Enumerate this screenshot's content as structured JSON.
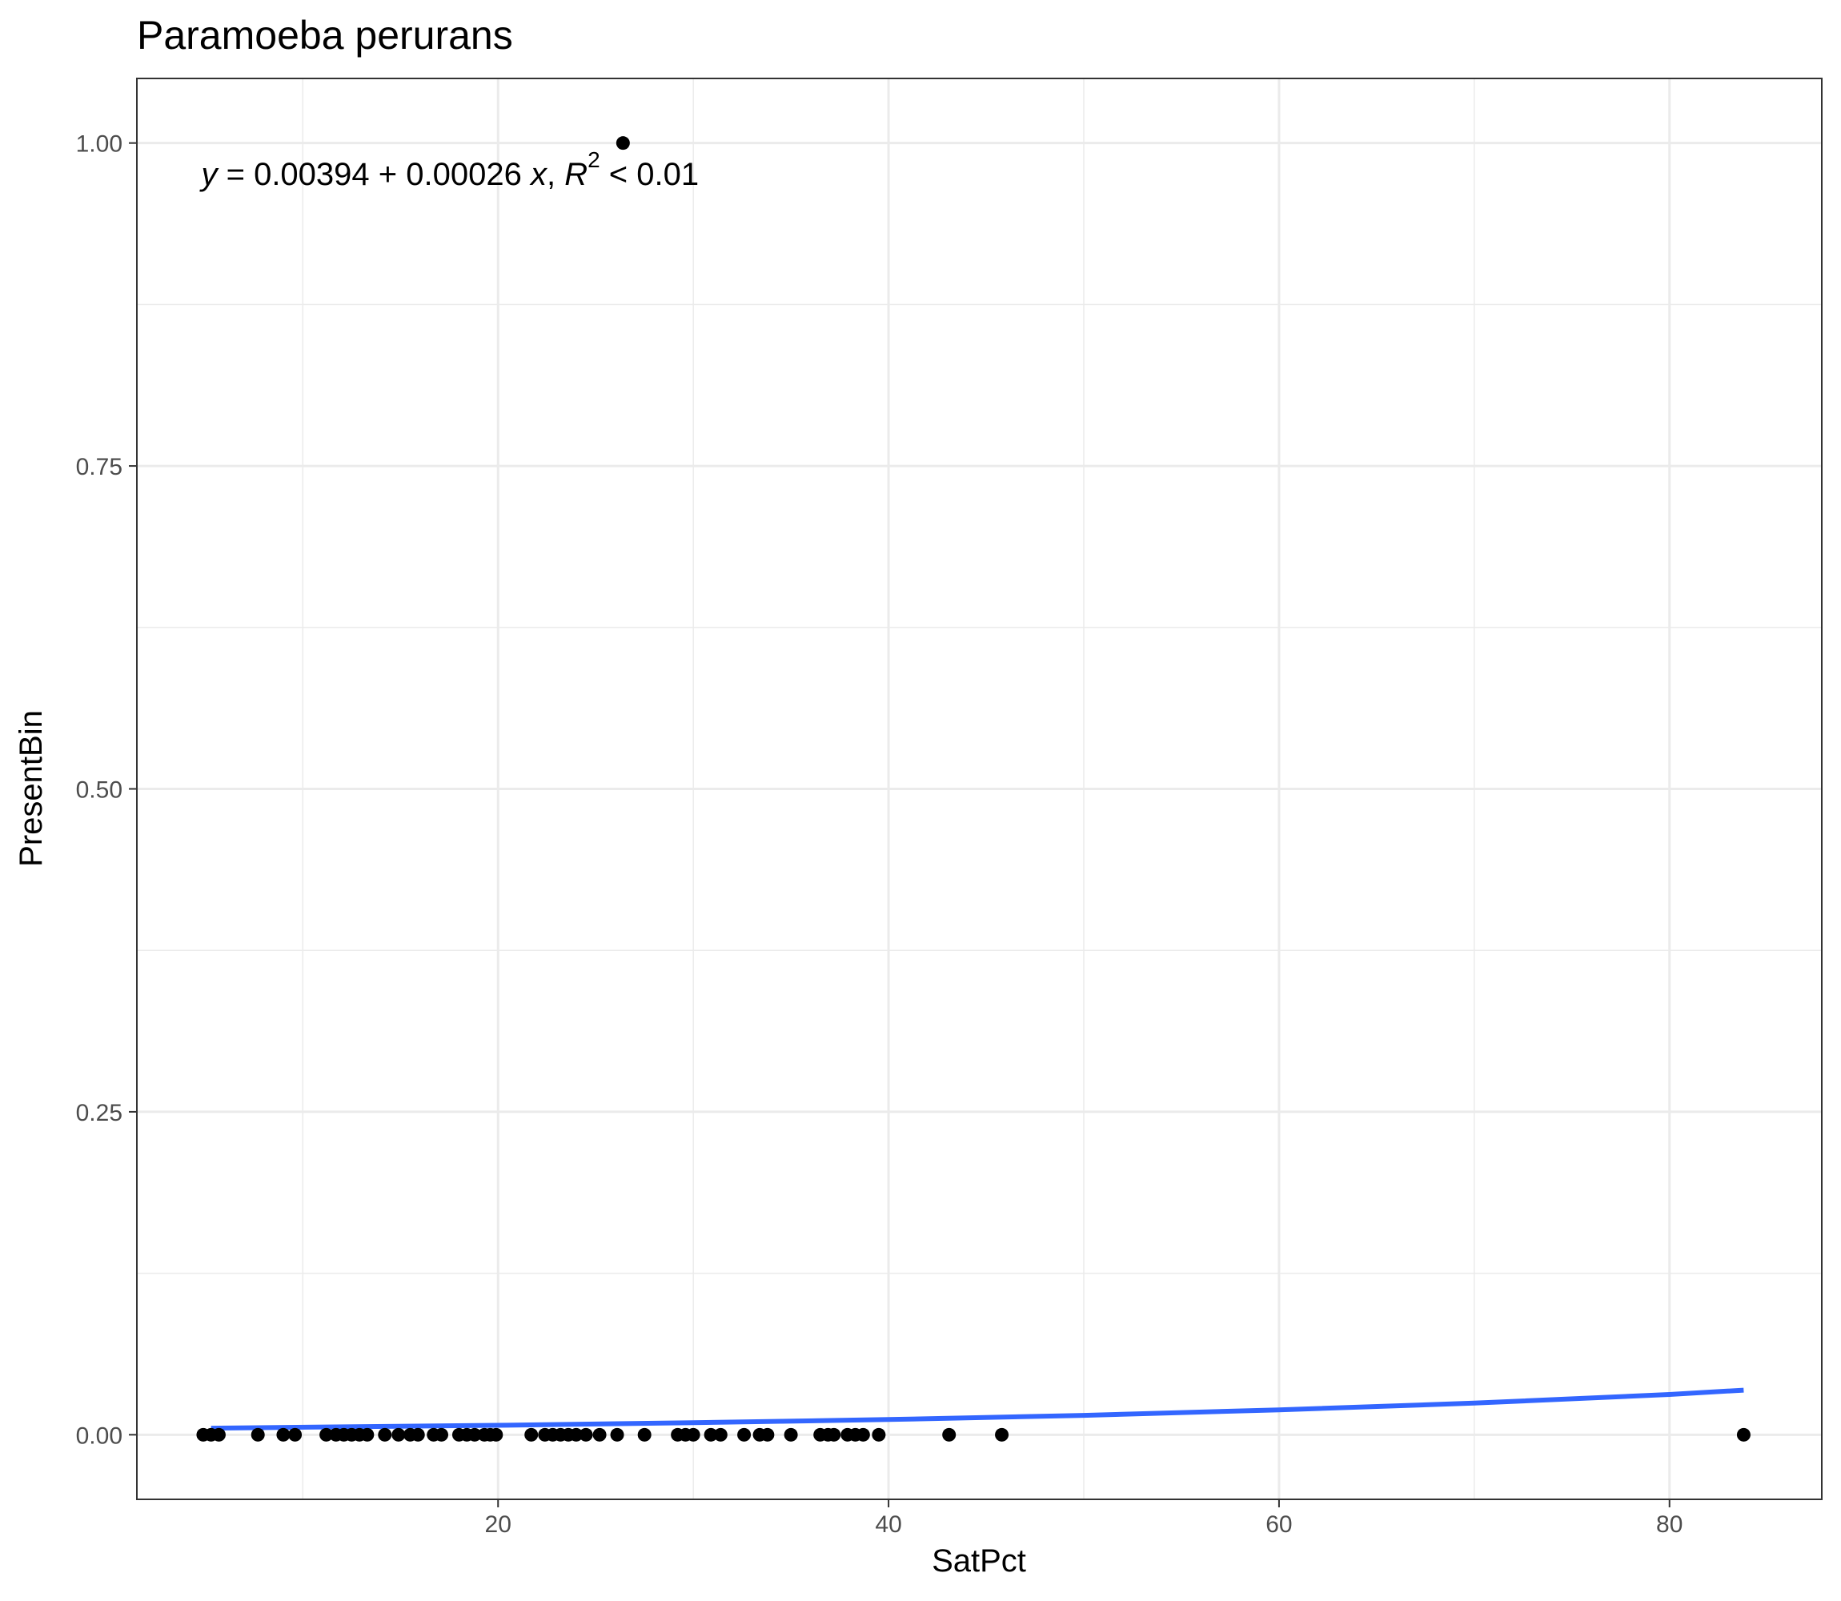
{
  "chart_data": {
    "type": "scatter",
    "title": "Paramoeba perurans",
    "xlabel": "SatPct",
    "ylabel": "PresentBin",
    "xlim": [
      1.5,
      87.8
    ],
    "ylim": [
      -0.05,
      1.05
    ],
    "x_ticks": [
      20,
      40,
      60,
      80
    ],
    "x_tick_labels": [
      "20",
      "40",
      "60",
      "80"
    ],
    "x_minor": [
      10,
      30,
      50,
      70
    ],
    "y_ticks": [
      0,
      0.25,
      0.5,
      0.75,
      1.0
    ],
    "y_tick_labels": [
      "0.00",
      "0.25",
      "0.50",
      "0.75",
      "1.00"
    ],
    "y_minor": [
      0.125,
      0.375,
      0.625,
      0.875
    ],
    "grid": true,
    "points": [
      {
        "x": 4.9,
        "y": 0
      },
      {
        "x": 5.3,
        "y": 0
      },
      {
        "x": 5.7,
        "y": 0
      },
      {
        "x": 7.7,
        "y": 0
      },
      {
        "x": 9.0,
        "y": 0
      },
      {
        "x": 9.6,
        "y": 0
      },
      {
        "x": 11.2,
        "y": 0
      },
      {
        "x": 11.7,
        "y": 0
      },
      {
        "x": 12.1,
        "y": 0
      },
      {
        "x": 12.5,
        "y": 0
      },
      {
        "x": 12.9,
        "y": 0
      },
      {
        "x": 13.3,
        "y": 0
      },
      {
        "x": 14.2,
        "y": 0
      },
      {
        "x": 14.9,
        "y": 0
      },
      {
        "x": 15.5,
        "y": 0
      },
      {
        "x": 15.9,
        "y": 0
      },
      {
        "x": 16.7,
        "y": 0
      },
      {
        "x": 17.1,
        "y": 0
      },
      {
        "x": 18.0,
        "y": 0
      },
      {
        "x": 18.4,
        "y": 0
      },
      {
        "x": 18.8,
        "y": 0
      },
      {
        "x": 19.3,
        "y": 0
      },
      {
        "x": 19.6,
        "y": 0
      },
      {
        "x": 19.9,
        "y": 0
      },
      {
        "x": 21.7,
        "y": 0
      },
      {
        "x": 22.4,
        "y": 0
      },
      {
        "x": 22.8,
        "y": 0
      },
      {
        "x": 23.2,
        "y": 0
      },
      {
        "x": 23.6,
        "y": 0
      },
      {
        "x": 24.0,
        "y": 0
      },
      {
        "x": 24.5,
        "y": 0
      },
      {
        "x": 25.2,
        "y": 0
      },
      {
        "x": 26.1,
        "y": 0
      },
      {
        "x": 27.5,
        "y": 0
      },
      {
        "x": 29.2,
        "y": 0
      },
      {
        "x": 29.6,
        "y": 0
      },
      {
        "x": 30.0,
        "y": 0
      },
      {
        "x": 30.9,
        "y": 0
      },
      {
        "x": 31.4,
        "y": 0
      },
      {
        "x": 32.6,
        "y": 0
      },
      {
        "x": 33.4,
        "y": 0
      },
      {
        "x": 33.8,
        "y": 0
      },
      {
        "x": 35.0,
        "y": 0
      },
      {
        "x": 36.5,
        "y": 0
      },
      {
        "x": 36.9,
        "y": 0
      },
      {
        "x": 37.2,
        "y": 0
      },
      {
        "x": 37.9,
        "y": 0
      },
      {
        "x": 38.3,
        "y": 0
      },
      {
        "x": 38.7,
        "y": 0
      },
      {
        "x": 39.5,
        "y": 0
      },
      {
        "x": 43.1,
        "y": 0
      },
      {
        "x": 45.8,
        "y": 0
      },
      {
        "x": 83.8,
        "y": 0
      },
      {
        "x": 26.4,
        "y": 1
      }
    ],
    "fit_line": {
      "color": "#3366FF",
      "x": [
        5.3,
        20,
        30,
        40,
        50,
        60,
        70,
        80,
        83.8
      ],
      "y": [
        0.0051,
        0.0073,
        0.0093,
        0.0118,
        0.015,
        0.0193,
        0.0245,
        0.0312,
        0.0345
      ]
    },
    "annotation": {
      "x": 4.8,
      "y": 0.975,
      "y_part": "y",
      "eq_part": " = 0.00394 + 0.00026 ",
      "x_part": "x",
      "comma": ", ",
      "r_part": "R",
      "sup": "2",
      "tail": " < 0.01"
    },
    "colors": {
      "points": "#000000",
      "grid": "#EBEBEB",
      "panel_border": "#333333"
    }
  }
}
